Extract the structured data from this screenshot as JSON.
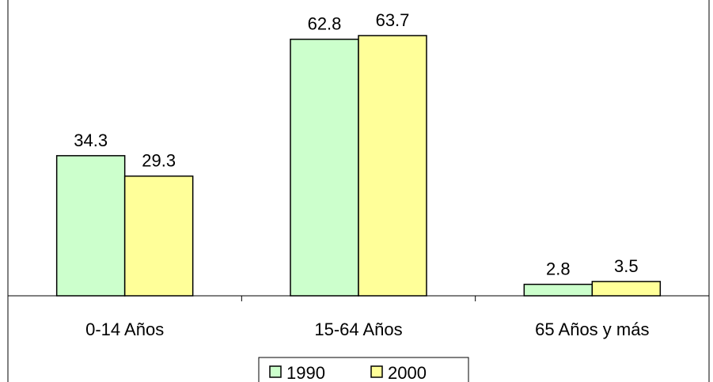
{
  "chart_data": {
    "type": "bar",
    "title": "",
    "xlabel": "",
    "ylabel": "",
    "categories": [
      "0-14 Años",
      "15-64 Años",
      "65 Años y más"
    ],
    "series": [
      {
        "name": "1990",
        "values": [
          34.3,
          62.8,
          2.8
        ],
        "color": "#ccffcc"
      },
      {
        "name": "2000",
        "values": [
          29.3,
          63.7,
          3.5
        ],
        "color": "#ffff99"
      }
    ],
    "ylim": [
      0,
      63.7
    ],
    "grid": false,
    "legend_position": "bottom",
    "data_labels": true
  }
}
